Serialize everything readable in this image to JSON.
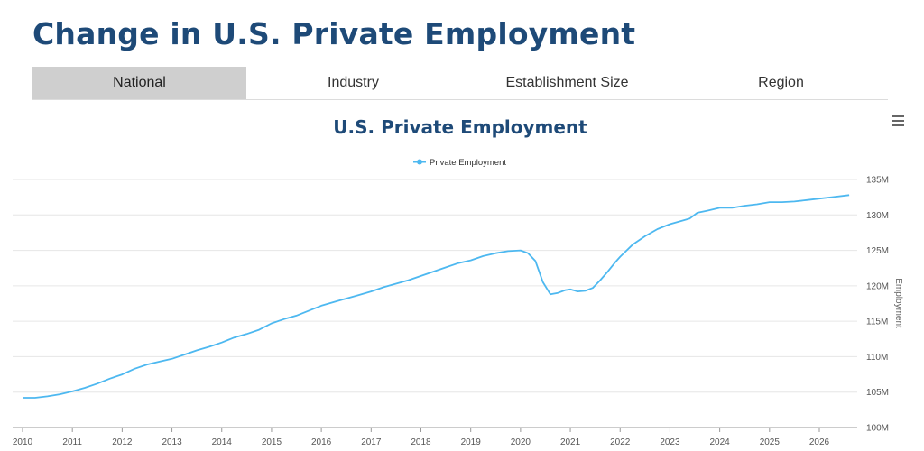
{
  "page": {
    "title": "Change in U.S. Private Employment"
  },
  "tabs": [
    {
      "label": "National",
      "active": true
    },
    {
      "label": "Industry",
      "active": false
    },
    {
      "label": "Establishment Size",
      "active": false
    },
    {
      "label": "Region",
      "active": false
    }
  ],
  "chart_data": {
    "type": "line",
    "title": "U.S. Private Employment",
    "ylabel": "Employment",
    "xlabel": "",
    "legend": {
      "placement": "top-center"
    },
    "grid": true,
    "ylim": [
      100,
      135
    ],
    "xlim": [
      2010,
      2026.8
    ],
    "y_ticks": [
      {
        "value": 100,
        "label": "100M"
      },
      {
        "value": 105,
        "label": "105M"
      },
      {
        "value": 110,
        "label": "110M"
      },
      {
        "value": 115,
        "label": "115M"
      },
      {
        "value": 120,
        "label": "120M"
      },
      {
        "value": 125,
        "label": "125M"
      },
      {
        "value": 130,
        "label": "130M"
      },
      {
        "value": 135,
        "label": "135M"
      }
    ],
    "x_ticks": [
      {
        "value": 2010,
        "label": "2010"
      },
      {
        "value": 2011,
        "label": "2011"
      },
      {
        "value": 2012,
        "label": "2012"
      },
      {
        "value": 2013,
        "label": "2013"
      },
      {
        "value": 2014,
        "label": "2014"
      },
      {
        "value": 2015,
        "label": "2015"
      },
      {
        "value": 2016,
        "label": "2016"
      },
      {
        "value": 2017,
        "label": "2017"
      },
      {
        "value": 2018,
        "label": "2018"
      },
      {
        "value": 2019,
        "label": "2019"
      },
      {
        "value": 2020,
        "label": "2020"
      },
      {
        "value": 2021,
        "label": "2021"
      },
      {
        "value": 2022,
        "label": "2022"
      },
      {
        "value": 2023,
        "label": "2023"
      },
      {
        "value": 2024,
        "label": "2024"
      },
      {
        "value": 2025,
        "label": "2025"
      },
      {
        "value": 2026,
        "label": "2026"
      }
    ],
    "series": [
      {
        "name": "Private Employment",
        "color": "#4db8f0",
        "points": [
          [
            2010.0,
            104.2
          ],
          [
            2010.25,
            104.2
          ],
          [
            2010.5,
            104.4
          ],
          [
            2010.75,
            104.7
          ],
          [
            2011.0,
            105.1
          ],
          [
            2011.25,
            105.6
          ],
          [
            2011.5,
            106.2
          ],
          [
            2011.75,
            106.9
          ],
          [
            2012.0,
            107.5
          ],
          [
            2012.25,
            108.3
          ],
          [
            2012.5,
            108.9
          ],
          [
            2012.75,
            109.3
          ],
          [
            2013.0,
            109.7
          ],
          [
            2013.25,
            110.3
          ],
          [
            2013.5,
            110.9
          ],
          [
            2013.75,
            111.4
          ],
          [
            2014.0,
            112.0
          ],
          [
            2014.25,
            112.7
          ],
          [
            2014.5,
            113.2
          ],
          [
            2014.75,
            113.8
          ],
          [
            2015.0,
            114.7
          ],
          [
            2015.25,
            115.3
          ],
          [
            2015.5,
            115.8
          ],
          [
            2015.75,
            116.5
          ],
          [
            2016.0,
            117.2
          ],
          [
            2016.25,
            117.7
          ],
          [
            2016.5,
            118.2
          ],
          [
            2016.75,
            118.7
          ],
          [
            2017.0,
            119.2
          ],
          [
            2017.25,
            119.8
          ],
          [
            2017.5,
            120.3
          ],
          [
            2017.75,
            120.8
          ],
          [
            2018.0,
            121.4
          ],
          [
            2018.25,
            122.0
          ],
          [
            2018.5,
            122.6
          ],
          [
            2018.75,
            123.2
          ],
          [
            2019.0,
            123.6
          ],
          [
            2019.25,
            124.2
          ],
          [
            2019.5,
            124.6
          ],
          [
            2019.75,
            124.9
          ],
          [
            2020.0,
            125.0
          ],
          [
            2020.15,
            124.6
          ],
          [
            2020.3,
            123.5
          ],
          [
            2020.45,
            120.5
          ],
          [
            2020.6,
            118.8
          ],
          [
            2020.75,
            119.0
          ],
          [
            2020.9,
            119.4
          ],
          [
            2021.0,
            119.5
          ],
          [
            2021.15,
            119.2
          ],
          [
            2021.3,
            119.3
          ],
          [
            2021.45,
            119.7
          ],
          [
            2021.6,
            120.8
          ],
          [
            2021.75,
            122.0
          ],
          [
            2021.9,
            123.3
          ],
          [
            2022.0,
            124.1
          ],
          [
            2022.25,
            125.8
          ],
          [
            2022.5,
            127.0
          ],
          [
            2022.75,
            128.0
          ],
          [
            2023.0,
            128.7
          ],
          [
            2023.25,
            129.2
          ],
          [
            2023.4,
            129.5
          ],
          [
            2023.55,
            130.3
          ],
          [
            2023.75,
            130.6
          ],
          [
            2024.0,
            131.0
          ],
          [
            2024.25,
            131.0
          ],
          [
            2024.5,
            131.3
          ],
          [
            2024.75,
            131.5
          ],
          [
            2025.0,
            131.8
          ],
          [
            2025.25,
            131.8
          ],
          [
            2025.5,
            131.9
          ],
          [
            2025.75,
            132.1
          ],
          [
            2026.0,
            132.3
          ],
          [
            2026.25,
            132.5
          ],
          [
            2026.6,
            132.8
          ]
        ]
      }
    ]
  }
}
